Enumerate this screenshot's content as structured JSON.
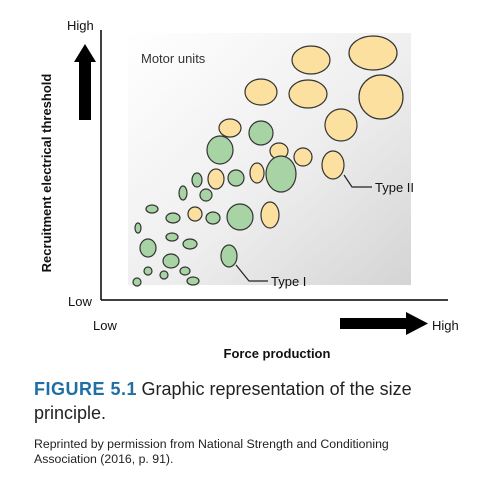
{
  "diagram": {
    "y_axis": {
      "title": "Recruitment electrical threshold",
      "high_label": "High",
      "low_label": "Low"
    },
    "x_axis": {
      "title": "Force production",
      "low_label": "Low",
      "high_label": "High"
    },
    "panel_label": "Motor units",
    "callouts": {
      "type_ii": "Type II",
      "type_i": "Type I"
    },
    "colors": {
      "type_i_fill": "#a8d4a5",
      "type_ii_fill": "#fbe0a0",
      "outline": "#333333",
      "arrow": "#000000"
    }
  },
  "caption": {
    "figure_number": "FIGURE 5.1",
    "line1_text": "Graphic representation of the size",
    "line2_text": "principle."
  },
  "credit": {
    "line1": "Reprinted by permission from National Strength and Conditioning",
    "line2": "Association (2016, p. 91)."
  }
}
